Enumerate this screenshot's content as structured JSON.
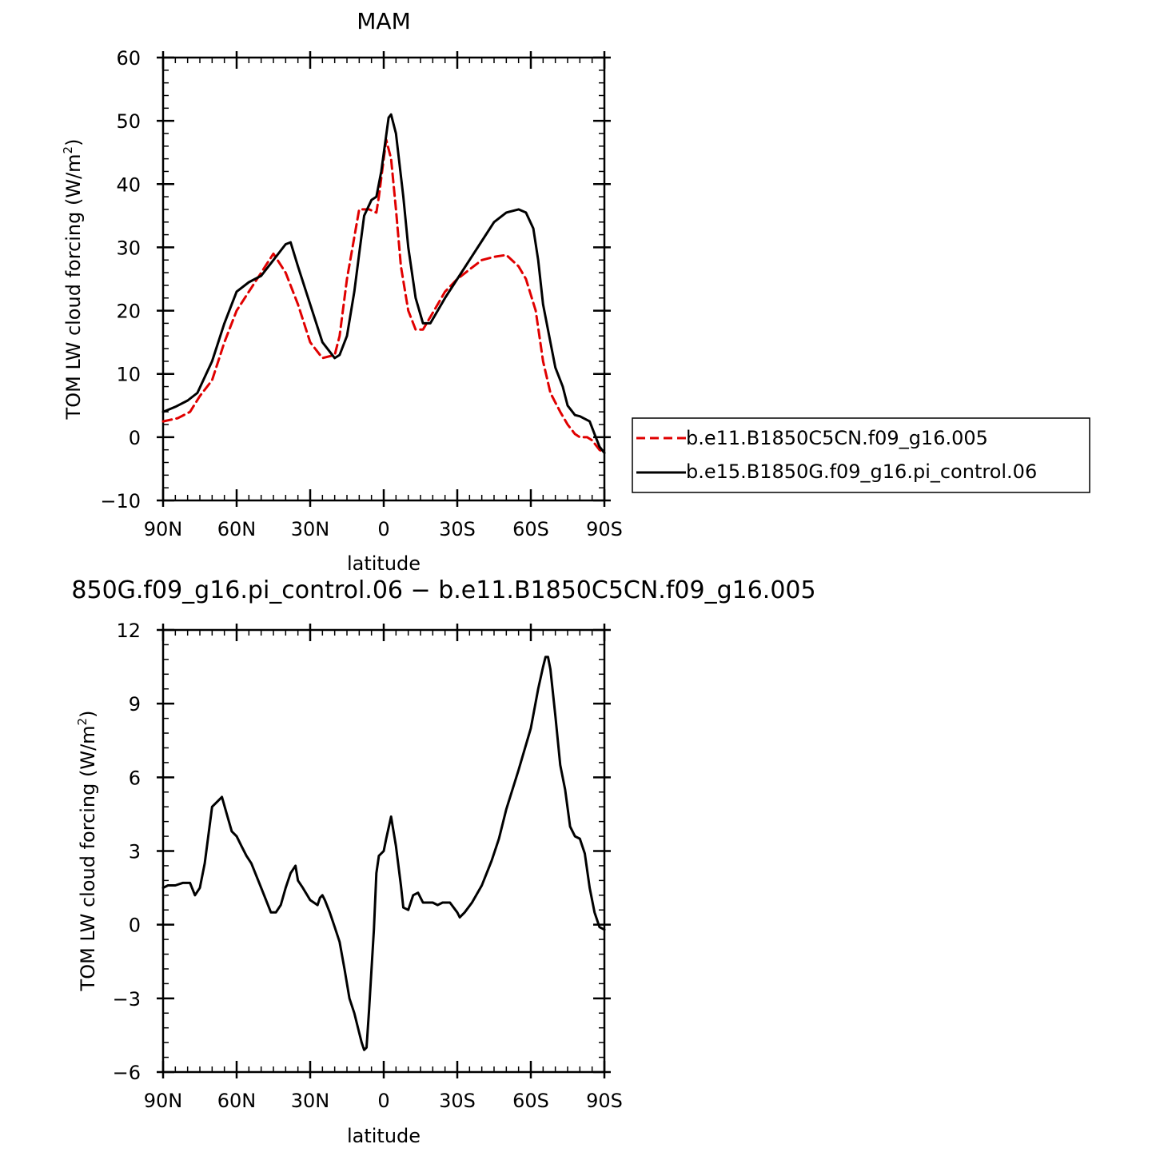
{
  "chart_data": [
    {
      "type": "line",
      "title": "MAM",
      "xlabel": "latitude",
      "ylabel": "TOM LW cloud forcing (W/m²)",
      "ylabel_parts": {
        "main": "TOM LW cloud forcing (W/m",
        "sup": "2",
        "end": ")"
      },
      "x_tick_labels": [
        "90N",
        "60N",
        "30N",
        "0",
        "30S",
        "60S",
        "90S"
      ],
      "x_tick_values": [
        90,
        60,
        30,
        0,
        -30,
        -60,
        -90
      ],
      "xlim": [
        90,
        -90
      ],
      "ylim": [
        -10,
        60
      ],
      "y_ticks": [
        -10,
        0,
        10,
        20,
        30,
        40,
        50,
        60
      ],
      "y_tick_labels": [
        "−10",
        "0",
        "10",
        "20",
        "30",
        "40",
        "50",
        "60"
      ],
      "legend": {
        "placement": "right",
        "entries": [
          "b.e11.B1850C5CN.f09_g16.005",
          "b.e15.B1850G.f09_g16.pi_control.06"
        ]
      },
      "series": [
        {
          "name": "b.e11.B1850C5CN.f09_g16.005",
          "color": "#e00000",
          "dash": true,
          "x": [
            90,
            84,
            79,
            75,
            70,
            65,
            60,
            55,
            50,
            45,
            40,
            35,
            30,
            25,
            20,
            18,
            15,
            10,
            6,
            3,
            2,
            0,
            -1,
            -3,
            -5,
            -7,
            -10,
            -13,
            -16,
            -19,
            -22,
            -25,
            -30,
            -35,
            -40,
            -45,
            -50,
            -55,
            -58,
            -62,
            -65,
            -68,
            -72,
            -75,
            -78,
            -80,
            -83,
            -85,
            -88,
            -90
          ],
          "y": [
            2.5,
            3,
            4,
            6.5,
            9,
            15,
            20,
            23,
            26,
            29,
            26,
            21,
            15,
            12.5,
            13,
            16,
            25,
            36,
            36,
            35.5,
            38,
            44,
            47,
            44,
            36,
            27,
            20,
            17,
            17,
            19,
            21,
            23,
            25,
            26.5,
            28,
            28.5,
            28.8,
            27,
            25,
            20,
            12,
            7,
            4,
            2,
            0.5,
            0,
            0,
            -0.5,
            -2,
            -2.5
          ]
        },
        {
          "name": "b.e15.B1850G.f09_g16.pi_control.06",
          "color": "#000000",
          "dash": false,
          "x": [
            90,
            85,
            80,
            76,
            70,
            65,
            60,
            55,
            50,
            45,
            40,
            38,
            35,
            30,
            25,
            20,
            18,
            15,
            12,
            10,
            8,
            5,
            3,
            1,
            -2,
            -3,
            -5,
            -8,
            -10,
            -13,
            -16,
            -19,
            -22,
            -25,
            -30,
            -35,
            -40,
            -45,
            -50,
            -55,
            -58,
            -61,
            -63,
            -65,
            -68,
            -70,
            -73,
            -75,
            -78,
            -80,
            -84,
            -86,
            -88,
            -90
          ],
          "y": [
            4,
            4.8,
            5.8,
            7,
            12,
            18,
            23,
            24.5,
            25.5,
            28,
            30.5,
            30.8,
            27,
            21,
            15,
            12.5,
            13,
            16,
            23,
            29,
            35,
            37.5,
            38,
            42,
            50.5,
            51,
            48,
            38,
            30,
            22,
            18,
            18,
            20,
            22,
            25,
            28,
            31,
            34,
            35.5,
            36,
            35.5,
            33,
            28,
            21,
            15,
            11,
            8,
            5,
            3.5,
            3.3,
            2.5,
            0.5,
            -1.5,
            -2.5
          ]
        }
      ]
    },
    {
      "type": "line",
      "title": "850G.f09_g16.pi_control.06 − b.e11.B1850C5CN.f09_g16.005",
      "xlabel": "latitude",
      "ylabel": "TOM LW cloud forcing (W/m²)",
      "ylabel_parts": {
        "main": "TOM LW cloud forcing (W/m",
        "sup": "2",
        "end": ")"
      },
      "x_tick_labels": [
        "90N",
        "60N",
        "30N",
        "0",
        "30S",
        "60S",
        "90S"
      ],
      "x_tick_values": [
        90,
        60,
        30,
        0,
        -30,
        -60,
        -90
      ],
      "xlim": [
        90,
        -90
      ],
      "ylim": [
        -6,
        12
      ],
      "y_ticks": [
        -6,
        -3,
        0,
        3,
        6,
        9,
        12
      ],
      "y_tick_labels": [
        "−6",
        "−3",
        "0",
        "3",
        "6",
        "9",
        "12"
      ],
      "series": [
        {
          "color": "#000000",
          "dash": false,
          "x": [
            90,
            88,
            85,
            82,
            79,
            77,
            75,
            73,
            70,
            68,
            66,
            64,
            62,
            60,
            58,
            56,
            54,
            50,
            46,
            44,
            42,
            40,
            38,
            36,
            35,
            33,
            30,
            27,
            26,
            25,
            24,
            22,
            20,
            18,
            16,
            14,
            12,
            10,
            9,
            8,
            7,
            6,
            4,
            3,
            2,
            0,
            -1,
            -3,
            -5,
            -7,
            -8,
            -10,
            -12,
            -14,
            -16,
            -18,
            -20,
            -22,
            -24,
            -27,
            -30,
            -31,
            -33,
            -36,
            -40,
            -44,
            -47,
            -50,
            -55,
            -60,
            -63,
            -65,
            -66,
            -67,
            -68,
            -70,
            -72,
            -74,
            -76,
            -78,
            -80,
            -82,
            -84,
            -86,
            -88,
            -90
          ],
          "y": [
            1.5,
            1.6,
            1.6,
            1.7,
            1.7,
            1.2,
            1.5,
            2.5,
            4.8,
            5,
            5.2,
            4.5,
            3.8,
            3.6,
            3.2,
            2.8,
            2.5,
            1.5,
            0.5,
            0.5,
            0.8,
            1.5,
            2.1,
            2.4,
            1.8,
            1.5,
            1.0,
            0.8,
            1.1,
            1.2,
            1.0,
            0.5,
            -0.1,
            -0.7,
            -1.8,
            -3.0,
            -3.6,
            -4.4,
            -4.8,
            -5.1,
            -5.0,
            -3.5,
            -0.2,
            2.1,
            2.8,
            3.0,
            3.5,
            4.4,
            3.2,
            1.6,
            0.7,
            0.6,
            1.2,
            1.3,
            0.9,
            0.9,
            0.9,
            0.8,
            0.9,
            0.9,
            0.5,
            0.3,
            0.5,
            0.9,
            1.6,
            2.6,
            3.5,
            4.7,
            6.3,
            8.0,
            9.6,
            10.5,
            10.9,
            10.9,
            10.4,
            8.5,
            6.5,
            5.5,
            4.0,
            3.6,
            3.5,
            2.9,
            1.5,
            0.5,
            -0.1,
            -0.2
          ]
        }
      ]
    }
  ]
}
